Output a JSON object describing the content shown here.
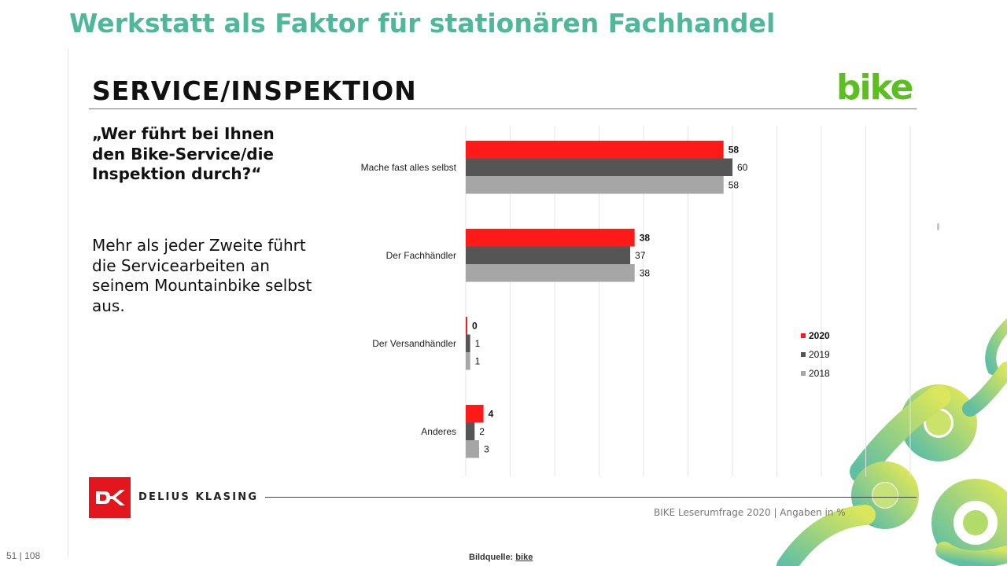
{
  "page": {
    "heading": "Werkstatt als Faktor für stationären Fachhandel",
    "page_number": "51 | 108",
    "image_credit_label": "Bildquelle:",
    "image_credit_value": "bike"
  },
  "slide": {
    "section_title": "SERVICE/INSPEKTION",
    "brand_logo": "bike",
    "question": "„Wer führt bei Ihnen den Bike-Service/die Inspektion durch?“",
    "note": "Mehr als jeder Zweite führt die Servicearbeiten an seinem Mountainbike selbst aus.",
    "publisher": "DELIUS KLASING",
    "source_note": "BIKE Leserumfrage 2020 | Angaben in %"
  },
  "colors": {
    "heading": "#4fb89a",
    "brand_green": "#5bbf20",
    "series_2020": "#ff1a1a",
    "series_2019": "#555555",
    "series_2018": "#a6a6a6",
    "publisher_red": "#e2161c"
  },
  "chart_data": {
    "type": "bar",
    "orientation": "horizontal",
    "categories": [
      "Mache fast alles selbst",
      "Der Fachhändler",
      "Der Versandhändler",
      "Anderes"
    ],
    "series": [
      {
        "name": "2020",
        "color": "#ff1a1a",
        "values": [
          58,
          38,
          0,
          4
        ]
      },
      {
        "name": "2019",
        "color": "#555555",
        "values": [
          60,
          37,
          1,
          2
        ]
      },
      {
        "name": "2018",
        "color": "#a6a6a6",
        "values": [
          58,
          38,
          1,
          3
        ]
      }
    ],
    "xlim": [
      0,
      100
    ],
    "grid": true,
    "legend_position": "right"
  }
}
